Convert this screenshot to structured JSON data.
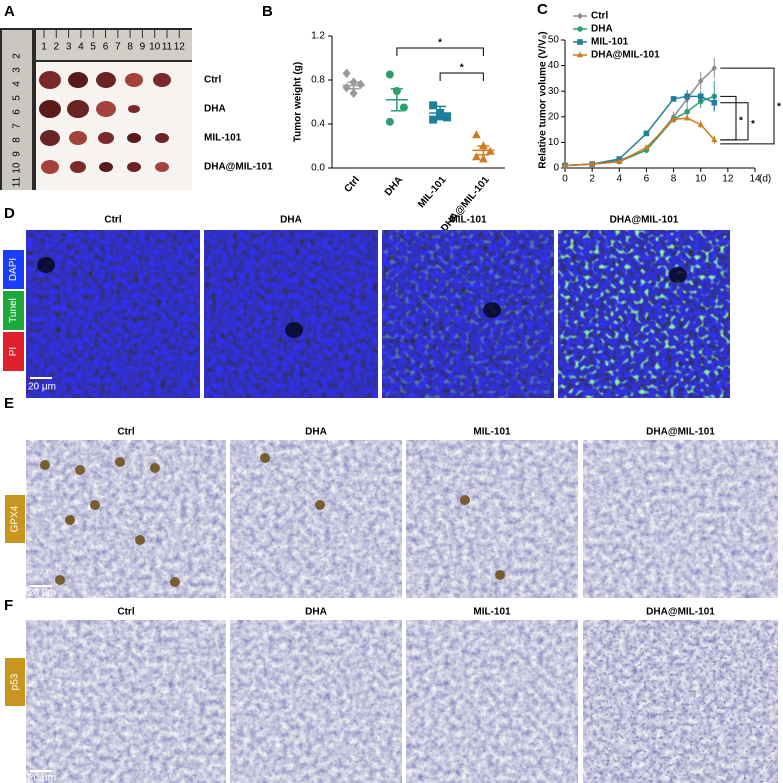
{
  "panel_labels": [
    "A",
    "B",
    "C",
    "D",
    "E",
    "F"
  ],
  "panel_a": {
    "ruler_top": [
      "1",
      "2",
      "3",
      "4",
      "5",
      "6",
      "7",
      "8",
      "9",
      "10",
      "11",
      "12"
    ],
    "ruler_left": [
      "2",
      "3",
      "4",
      "5",
      "6",
      "7",
      "8",
      "9",
      "10",
      "11"
    ],
    "groups": [
      "Ctrl",
      "DHA",
      "MIL-101",
      "DHA@MIL-101"
    ]
  },
  "chart_data": [
    {
      "type": "dot",
      "ylabel": "Tumor weight (g)",
      "categories": [
        "Ctrl",
        "DHA",
        "MIL-101",
        "DHA@MIL-101"
      ],
      "points": [
        [
          0.86,
          0.78,
          0.76,
          0.73,
          0.68
        ],
        [
          0.85,
          0.7,
          0.55,
          0.42
        ],
        [
          0.57,
          0.5,
          0.46,
          0.44,
          0.47
        ],
        [
          0.3,
          0.2,
          0.15,
          0.1,
          0.08
        ]
      ],
      "means": [
        0.75,
        0.62,
        0.5,
        0.16
      ],
      "errors": [
        0.03,
        0.1,
        0.06,
        0.04
      ],
      "colors": [
        "#9a9a9a",
        "#2aa070",
        "#1f7f9a",
        "#d07a1e"
      ],
      "markers": [
        "diamond",
        "circle",
        "square",
        "triangle"
      ],
      "ylim": [
        0,
        1.2
      ],
      "yticks": [
        {
          "value": 0,
          "label": "0.0"
        },
        0.4,
        0.8,
        1.2
      ],
      "annotations": [
        "*",
        "*"
      ]
    },
    {
      "type": "line",
      "ylabel": "Relative tumor volume (V/V₀)",
      "xlabel": "(d)",
      "x": [
        0,
        2,
        4,
        6,
        8,
        9,
        10,
        11
      ],
      "xlim": [
        0,
        14
      ],
      "xticks": [
        0,
        2,
        4,
        6,
        8,
        10,
        12,
        14
      ],
      "ylim": [
        0,
        50
      ],
      "yticks": [
        0,
        10,
        20,
        30,
        40,
        50
      ],
      "series": [
        {
          "name": "Ctrl",
          "color": "#8c8c8c",
          "marker": "diamond",
          "values": [
            1,
            1.5,
            3,
            7,
            20,
            27,
            34,
            39
          ],
          "errors": [
            0.2,
            0.3,
            0.5,
            1,
            2,
            3,
            3.5,
            4
          ]
        },
        {
          "name": "DHA",
          "color": "#2aa070",
          "marker": "circle",
          "values": [
            1,
            1.5,
            2.5,
            7,
            19,
            22,
            26,
            28
          ],
          "errors": [
            0.2,
            0.3,
            0.5,
            1,
            1.5,
            2,
            2.5,
            6
          ]
        },
        {
          "name": "MIL-101",
          "color": "#1f7f9a",
          "marker": "square",
          "values": [
            1,
            1.5,
            3.5,
            13.5,
            27,
            28,
            28,
            25.5
          ],
          "errors": [
            0.2,
            0.3,
            0.5,
            0.8,
            1,
            2.5,
            2,
            3
          ]
        },
        {
          "name": "DHA@MIL-101",
          "color": "#d07a1e",
          "marker": "triangle",
          "values": [
            1,
            1.5,
            2.5,
            8,
            19,
            19.5,
            17,
            11
          ],
          "errors": [
            0.2,
            0.3,
            0.5,
            1,
            1,
            1,
            1.5,
            1.5
          ]
        }
      ],
      "annotations": [
        "*",
        "*",
        "*"
      ]
    }
  ],
  "panel_d": {
    "columns": [
      "Ctrl",
      "DHA",
      "MIL-101",
      "DHA@MIL-101"
    ],
    "stains": [
      "DAPI",
      "Tunel",
      "PI"
    ],
    "scale_bar": "20 μm"
  },
  "panel_e": {
    "columns": [
      "Ctrl",
      "DHA",
      "MIL-101",
      "DHA@MIL-101"
    ],
    "stain": "GPX4",
    "scale_bar": "20 μm"
  },
  "panel_f": {
    "columns": [
      "Ctrl",
      "DHA",
      "MIL-101",
      "DHA@MIL-101"
    ],
    "stain": "p53",
    "scale_bar": "20 μm"
  }
}
